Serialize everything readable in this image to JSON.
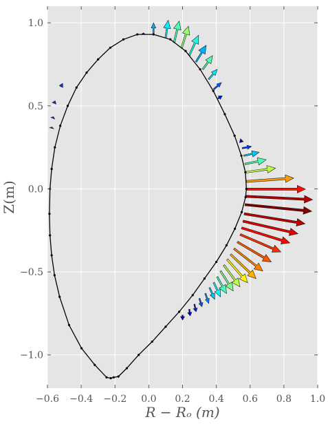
{
  "chart_data": {
    "type": "quiver",
    "title": "",
    "xlabel": "R − Rₒ (m)",
    "ylabel": "Z(m)",
    "xlim": [
      -0.6,
      1.0
    ],
    "ylim": [
      -1.2,
      1.1
    ],
    "grid": true,
    "colormap": "jet",
    "colors": {
      "plot_background": "#e5e5e5",
      "grid": "#ffffff",
      "boundary": "#000000"
    },
    "xticks": [
      {
        "value": -0.6,
        "label": "−0.6"
      },
      {
        "value": -0.4,
        "label": "−0.4"
      },
      {
        "value": -0.2,
        "label": "−0.2"
      },
      {
        "value": 0.0,
        "label": "0.0"
      },
      {
        "value": 0.2,
        "label": "0.2"
      },
      {
        "value": 0.4,
        "label": "0.4"
      },
      {
        "value": 0.6,
        "label": "0.6"
      },
      {
        "value": 0.8,
        "label": "0.8"
      },
      {
        "value": 1.0,
        "label": "1.0"
      }
    ],
    "yticks": [
      {
        "value": 1.0,
        "label": "1.0"
      },
      {
        "value": 0.5,
        "label": "0.5"
      },
      {
        "value": 0.0,
        "label": "0.0"
      },
      {
        "value": -0.5,
        "label": "−0.5"
      },
      {
        "value": -1.0,
        "label": "−1.0"
      }
    ],
    "boundary": {
      "R": [
        0.578,
        0.572,
        0.548,
        0.508,
        0.45,
        0.382,
        0.304,
        0.218,
        0.128,
        0.028,
        -0.068,
        -0.15,
        -0.228,
        -0.3,
        -0.368,
        -0.428,
        -0.48,
        -0.524,
        -0.556,
        -0.575,
        -0.585,
        -0.588,
        -0.585,
        -0.575,
        -0.558,
        -0.528,
        -0.472,
        -0.398,
        -0.32,
        -0.25,
        -0.225,
        -0.208,
        -0.18,
        -0.13,
        -0.06,
        0.02,
        0.1,
        0.18,
        0.26,
        0.33,
        0.4,
        0.46,
        0.51,
        0.55,
        0.573,
        0.578
      ],
      "Z": [
        0.0,
        0.1,
        0.2,
        0.32,
        0.45,
        0.59,
        0.72,
        0.83,
        0.9,
        0.93,
        0.93,
        0.9,
        0.85,
        0.78,
        0.7,
        0.61,
        0.5,
        0.38,
        0.25,
        0.12,
        0.0,
        -0.15,
        -0.28,
        -0.4,
        -0.52,
        -0.65,
        -0.82,
        -0.96,
        -1.06,
        -1.135,
        -1.14,
        -1.135,
        -1.13,
        -1.08,
        -1.0,
        -0.92,
        -0.83,
        -0.74,
        -0.64,
        -0.54,
        -0.44,
        -0.34,
        -0.24,
        -0.14,
        -0.05,
        0.0
      ]
    },
    "arrows": [
      {
        "R": -0.032,
        "Z": 0.93,
        "U": 0.0,
        "V": 0.01,
        "t": 0.08
      },
      {
        "R": 0.028,
        "Z": 0.93,
        "U": 0.0,
        "V": 0.07,
        "t": 0.3
      },
      {
        "R": 0.1,
        "Z": 0.91,
        "U": 0.015,
        "V": 0.105,
        "t": 0.36
      },
      {
        "R": 0.15,
        "Z": 0.88,
        "U": 0.03,
        "V": 0.13,
        "t": 0.45
      },
      {
        "R": 0.195,
        "Z": 0.85,
        "U": 0.04,
        "V": 0.13,
        "t": 0.52
      },
      {
        "R": 0.24,
        "Z": 0.805,
        "U": 0.055,
        "V": 0.12,
        "t": 0.4
      },
      {
        "R": 0.28,
        "Z": 0.765,
        "U": 0.06,
        "V": 0.1,
        "t": 0.3
      },
      {
        "R": 0.32,
        "Z": 0.72,
        "U": 0.058,
        "V": 0.082,
        "t": 0.45
      },
      {
        "R": 0.355,
        "Z": 0.66,
        "U": 0.05,
        "V": 0.06,
        "t": 0.36
      },
      {
        "R": 0.385,
        "Z": 0.6,
        "U": 0.045,
        "V": 0.04,
        "t": 0.22
      },
      {
        "R": 0.41,
        "Z": 0.545,
        "U": 0.025,
        "V": 0.015,
        "t": 0.15
      },
      {
        "R": 0.54,
        "Z": 0.29,
        "U": 0.02,
        "V": -0.005,
        "t": 0.08
      },
      {
        "R": 0.553,
        "Z": 0.245,
        "U": 0.055,
        "V": 0.01,
        "t": 0.18
      },
      {
        "R": 0.563,
        "Z": 0.2,
        "U": 0.09,
        "V": 0.02,
        "t": 0.32
      },
      {
        "R": 0.57,
        "Z": 0.15,
        "U": 0.125,
        "V": 0.025,
        "t": 0.45
      },
      {
        "R": 0.575,
        "Z": 0.1,
        "U": 0.175,
        "V": 0.025,
        "t": 0.56
      },
      {
        "R": 0.578,
        "Z": 0.045,
        "U": 0.28,
        "V": 0.02,
        "t": 0.72
      },
      {
        "R": 0.578,
        "Z": -0.002,
        "U": 0.35,
        "V": 0.0,
        "t": 0.86
      },
      {
        "R": 0.575,
        "Z": -0.045,
        "U": 0.395,
        "V": -0.02,
        "t": 0.95
      },
      {
        "R": 0.57,
        "Z": -0.095,
        "U": 0.395,
        "V": -0.04,
        "t": 1.0
      },
      {
        "R": 0.565,
        "Z": -0.15,
        "U": 0.36,
        "V": -0.06,
        "t": 0.94
      },
      {
        "R": 0.558,
        "Z": -0.195,
        "U": 0.325,
        "V": -0.075,
        "t": 0.9
      },
      {
        "R": 0.55,
        "Z": -0.235,
        "U": 0.285,
        "V": -0.09,
        "t": 0.87
      },
      {
        "R": 0.542,
        "Z": -0.275,
        "U": 0.24,
        "V": -0.105,
        "t": 0.83
      },
      {
        "R": 0.525,
        "Z": -0.32,
        "U": 0.2,
        "V": -0.12,
        "t": 0.79
      },
      {
        "R": 0.505,
        "Z": -0.36,
        "U": 0.17,
        "V": -0.135,
        "t": 0.75
      },
      {
        "R": 0.485,
        "Z": -0.395,
        "U": 0.15,
        "V": -0.145,
        "t": 0.7
      },
      {
        "R": 0.465,
        "Z": -0.425,
        "U": 0.12,
        "V": -0.14,
        "t": 0.63
      },
      {
        "R": 0.445,
        "Z": -0.46,
        "U": 0.095,
        "V": -0.13,
        "t": 0.56
      },
      {
        "R": 0.425,
        "Z": -0.495,
        "U": 0.075,
        "V": -0.12,
        "t": 0.5
      },
      {
        "R": 0.405,
        "Z": -0.53,
        "U": 0.055,
        "V": -0.1,
        "t": 0.44
      },
      {
        "R": 0.385,
        "Z": -0.565,
        "U": 0.04,
        "V": -0.085,
        "t": 0.38
      },
      {
        "R": 0.36,
        "Z": -0.595,
        "U": 0.03,
        "V": -0.07,
        "t": 0.32
      },
      {
        "R": 0.335,
        "Z": -0.63,
        "U": 0.02,
        "V": -0.06,
        "t": 0.26
      },
      {
        "R": 0.3,
        "Z": -0.66,
        "U": 0.015,
        "V": -0.05,
        "t": 0.2
      },
      {
        "R": 0.27,
        "Z": -0.695,
        "U": 0.01,
        "V": -0.045,
        "t": 0.15
      },
      {
        "R": 0.24,
        "Z": -0.725,
        "U": 0.005,
        "V": -0.04,
        "t": 0.11
      },
      {
        "R": 0.2,
        "Z": -0.76,
        "U": 0.0,
        "V": -0.03,
        "t": 0.08
      }
    ],
    "small_arrows_left": {
      "R": [
        -0.52,
        -0.56,
        -0.568,
        -0.575
      ],
      "Z": [
        0.615,
        0.515,
        0.425,
        0.365
      ],
      "U": [
        0.01,
        0.006,
        0.004,
        0.002
      ],
      "V": [
        0.02,
        0.015,
        0.01,
        0.008
      ]
    }
  }
}
